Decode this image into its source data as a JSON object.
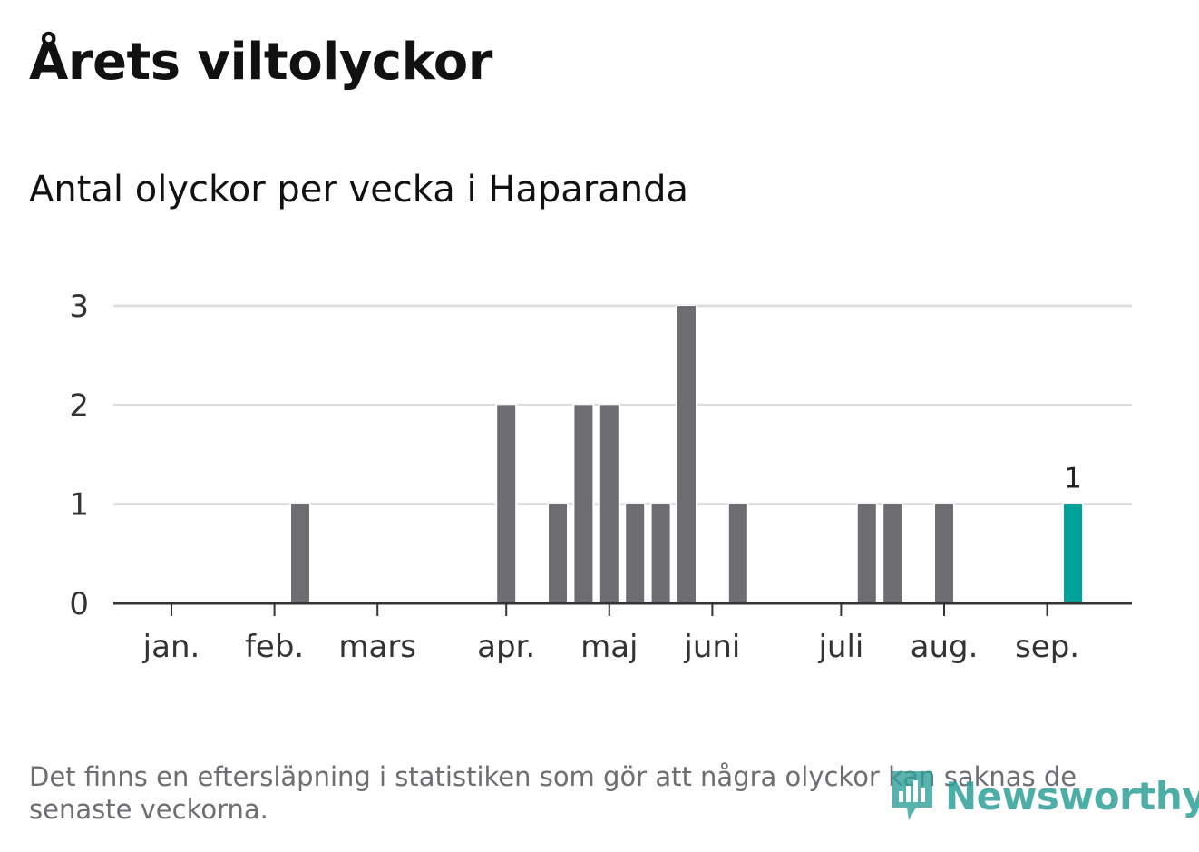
{
  "title": "Årets viltolyckor",
  "subtitle": "Antal olyckor per vecka i Haparanda",
  "footnote": "Det finns en eftersläpning i statistiken som gör att några olyckor kan saknas de senaste veckorna.",
  "logo_text": "Newsworthy",
  "colors": {
    "bar": "#6d6d72",
    "highlight": "#00a19a",
    "grid": "#dddddd",
    "axis": "#333333",
    "logo": "#2e9f98"
  },
  "chart_data": {
    "type": "bar",
    "title": "Antal olyckor per vecka i Haparanda",
    "xlabel": "",
    "ylabel": "",
    "ylim": [
      0,
      3
    ],
    "yticks": [
      0,
      1,
      2,
      3
    ],
    "grid": true,
    "month_labels": [
      {
        "label": "jan.",
        "week": 1
      },
      {
        "label": "feb.",
        "week": 5
      },
      {
        "label": "mars",
        "week": 9
      },
      {
        "label": "apr.",
        "week": 14
      },
      {
        "label": "maj",
        "week": 18
      },
      {
        "label": "juni",
        "week": 22
      },
      {
        "label": "juli",
        "week": 27
      },
      {
        "label": "aug.",
        "week": 31
      },
      {
        "label": "sep.",
        "week": 35
      }
    ],
    "weeks": [
      1,
      2,
      3,
      4,
      5,
      6,
      7,
      8,
      9,
      10,
      11,
      12,
      13,
      14,
      15,
      16,
      17,
      18,
      19,
      20,
      21,
      22,
      23,
      24,
      25,
      26,
      27,
      28,
      29,
      30,
      31,
      32,
      33,
      34,
      35,
      36
    ],
    "values": [
      0,
      0,
      0,
      0,
      0,
      1,
      0,
      0,
      0,
      0,
      0,
      0,
      0,
      2,
      0,
      1,
      2,
      2,
      1,
      1,
      3,
      0,
      1,
      0,
      0,
      0,
      0,
      1,
      1,
      0,
      1,
      0,
      0,
      0,
      0,
      1
    ],
    "highlight_index": 35,
    "data_labels": [
      {
        "index": 35,
        "text": "1"
      }
    ]
  }
}
